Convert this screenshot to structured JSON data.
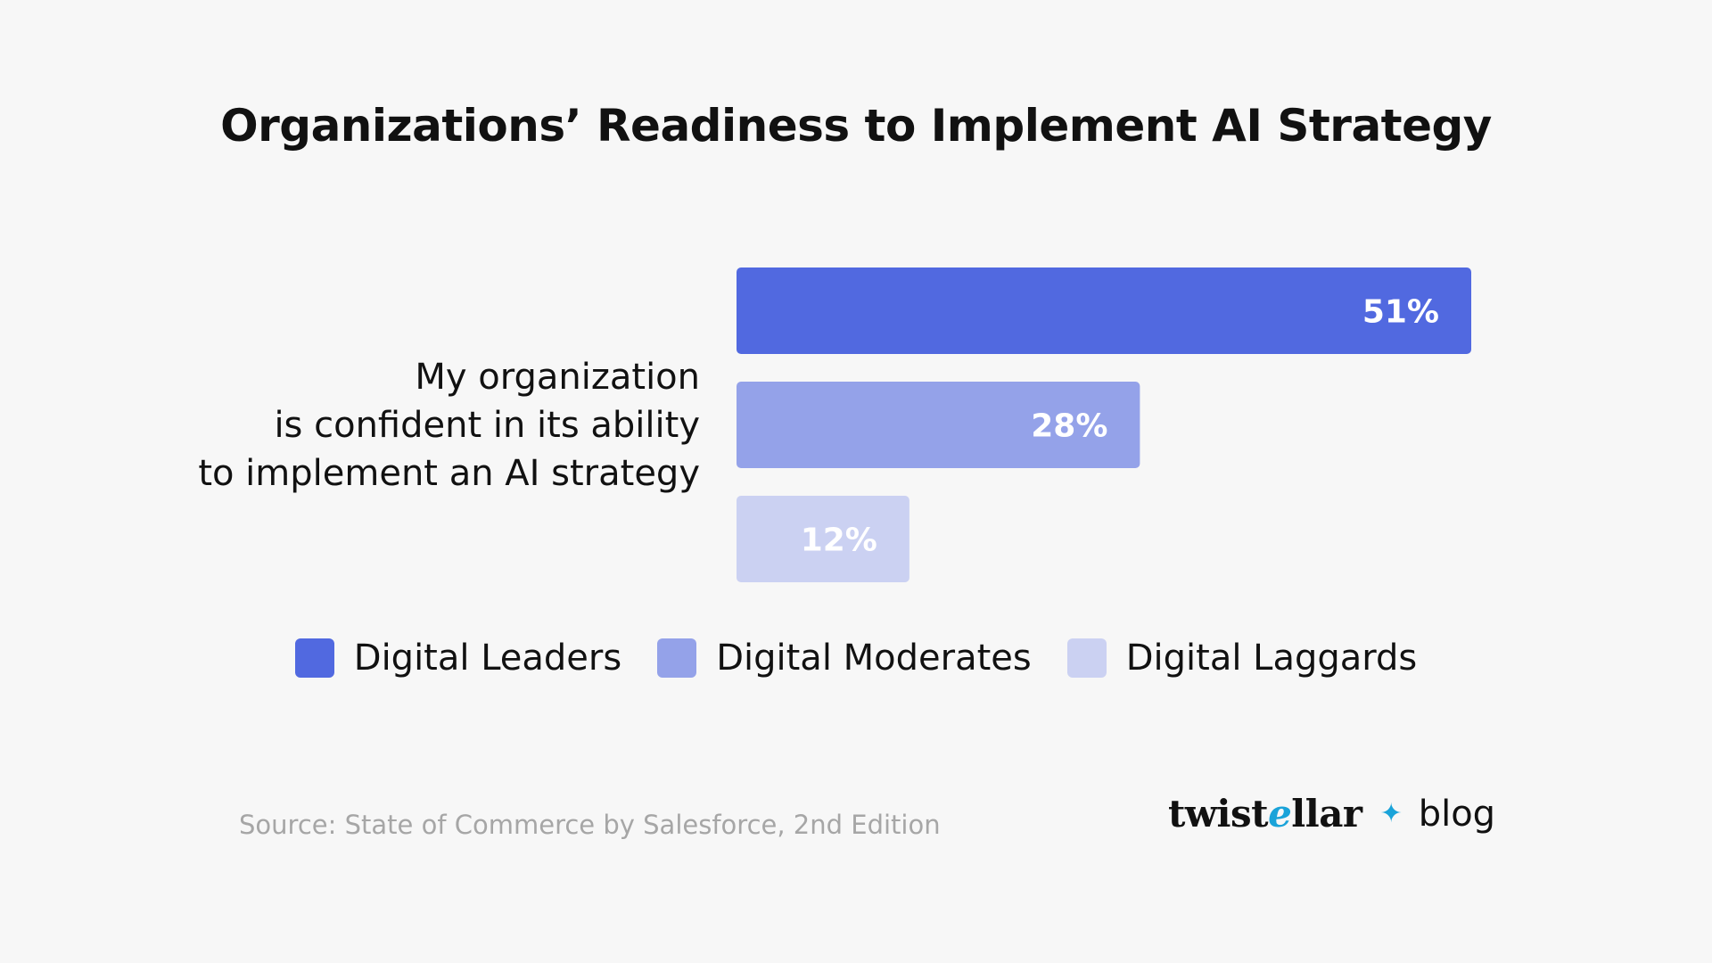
{
  "title": "Organizations’ Readiness to Implement AI Strategy",
  "question_lines": [
    "My organization",
    "is confident in its ability",
    "to implement an AI strategy"
  ],
  "chart_data": {
    "type": "bar",
    "orientation": "horizontal",
    "categories": [
      "My organization is confident in its ability to implement an AI strategy"
    ],
    "series": [
      {
        "name": "Digital Leaders",
        "values": [
          51
        ],
        "label": "51%",
        "color": "#5169e0"
      },
      {
        "name": "Digital Moderates",
        "values": [
          28
        ],
        "label": "28%",
        "color": "#94a2e9"
      },
      {
        "name": "Digital Laggards",
        "values": [
          12
        ],
        "label": "12%",
        "color": "#cbd1f2"
      }
    ],
    "unit": "%",
    "xlim": [
      0,
      51
    ],
    "grid": false,
    "legend_position": "bottom"
  },
  "legend": [
    {
      "label": "Digital Leaders",
      "color": "#5169e0"
    },
    {
      "label": "Digital Moderates",
      "color": "#94a2e9"
    },
    {
      "label": "Digital Laggards",
      "color": "#cbd1f2"
    }
  ],
  "source": "Source: State of Commerce by Salesforce, 2nd Edition",
  "brand": {
    "logo_parts": [
      "twist",
      "e",
      "llar"
    ],
    "sparkle_icon": "sparkle-icon",
    "blog": "blog"
  }
}
